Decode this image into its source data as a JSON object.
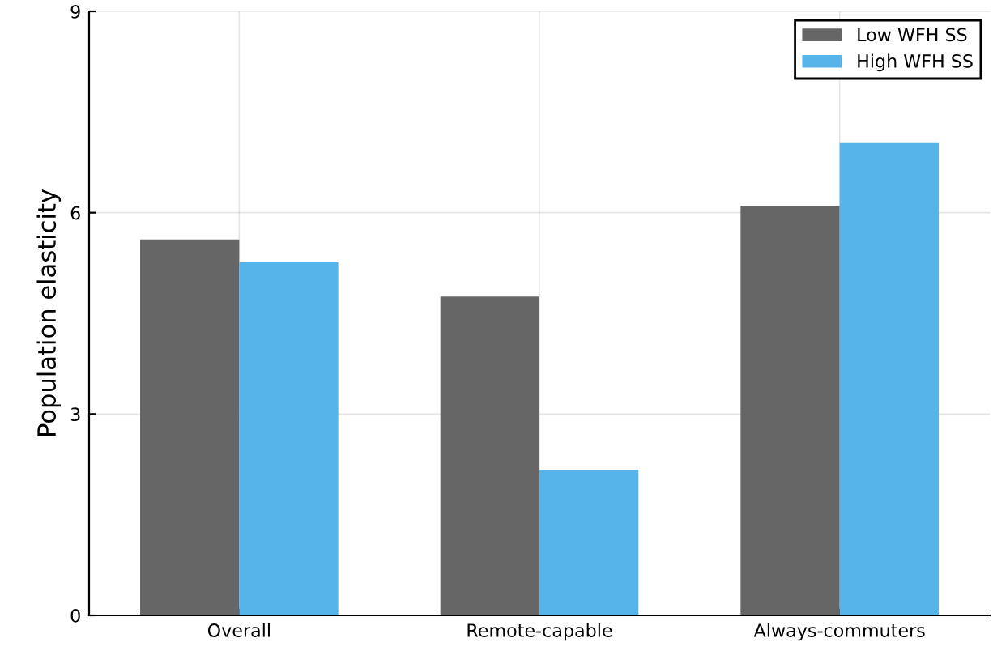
{
  "chart_data": {
    "type": "bar",
    "ylabel": "Population elasticity",
    "categories": [
      "Overall",
      "Remote-capable",
      "Always-commuters"
    ],
    "series": [
      {
        "name": "Low WFH SS",
        "color": "#666666",
        "values": [
          5.6,
          4.75,
          6.1
        ]
      },
      {
        "name": "High WFH SS",
        "color": "#56b4e9",
        "values": [
          5.26,
          2.17,
          7.05
        ]
      }
    ],
    "ylim": [
      0,
      9
    ],
    "yticks": [
      0,
      3,
      6,
      9
    ],
    "grid": true,
    "legend": "top right"
  }
}
